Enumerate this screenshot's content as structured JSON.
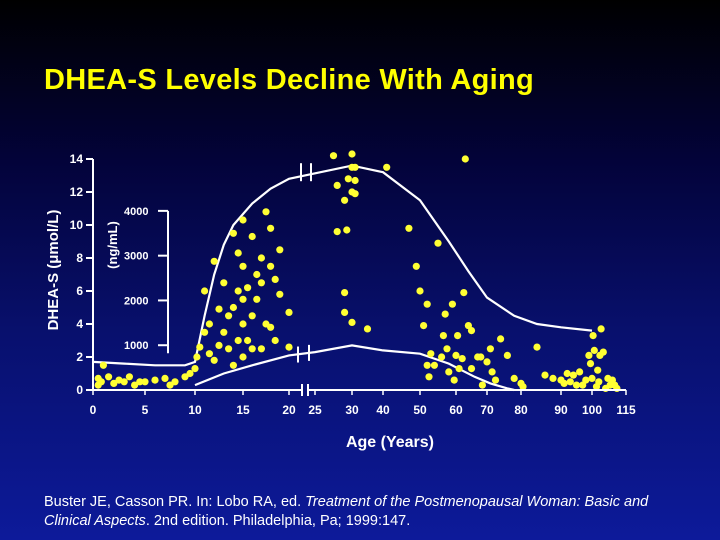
{
  "slide": {
    "title": "DHEA-S Levels Decline With Aging",
    "citation": {
      "prefix": "Buster JE, Casson PR. In: Lobo RA, ed. ",
      "book": "Treatment of the Postmenopausal Woman: Basic and Clinical Aspects",
      "suffix": ". 2nd edition. Philadelphia, Pa; 1999:147."
    }
  },
  "colors": {
    "points": "#ffff33",
    "text": "#ffffff",
    "title": "#ffff00"
  },
  "chart_data": {
    "type": "scatter",
    "xlabel": "Age (Years)",
    "ylabel_left": "DHEA-S (μmol/L)",
    "ylabel_inner": "(ng/mL)",
    "x_ticks": [
      "0",
      "5",
      "10",
      "15",
      "20",
      "25",
      "30",
      "40",
      "50",
      "60",
      "70",
      "80",
      "90",
      "100",
      "115"
    ],
    "x_axis_break_after": "20",
    "y_ticks_left": [
      "0",
      "2",
      "4",
      "6",
      "8",
      "10",
      "12",
      "14"
    ],
    "y_ticks_inner": [
      "1000",
      "2000",
      "3000",
      "4000"
    ],
    "ylim_umol": [
      0,
      14
    ],
    "x_breakpoints": [
      0,
      5,
      10,
      15,
      20,
      25,
      30,
      40,
      50,
      60,
      70,
      80,
      90,
      100,
      115
    ],
    "points": [
      [
        0.5,
        0.3
      ],
      [
        0.5,
        0.7
      ],
      [
        0.8,
        0.5
      ],
      [
        1,
        1.5
      ],
      [
        1.5,
        0.8
      ],
      [
        2,
        0.4
      ],
      [
        2.5,
        0.6
      ],
      [
        3,
        0.5
      ],
      [
        3.5,
        0.8
      ],
      [
        4,
        0.3
      ],
      [
        4.5,
        0.5
      ],
      [
        5,
        0.5
      ],
      [
        6,
        0.6
      ],
      [
        7,
        0.7
      ],
      [
        7.5,
        0.3
      ],
      [
        8,
        0.5
      ],
      [
        9,
        0.8
      ],
      [
        9.5,
        1.0
      ],
      [
        10,
        1.3
      ],
      [
        10.2,
        2.0
      ],
      [
        10.5,
        2.6
      ],
      [
        11,
        3.5
      ],
      [
        11,
        6.0
      ],
      [
        11.5,
        2.2
      ],
      [
        11.5,
        4.0
      ],
      [
        12,
        1.8
      ],
      [
        12,
        7.8
      ],
      [
        12.5,
        2.7
      ],
      [
        12.5,
        4.9
      ],
      [
        13,
        3.5
      ],
      [
        13,
        6.5
      ],
      [
        13.5,
        2.5
      ],
      [
        13.5,
        4.5
      ],
      [
        14,
        1.5
      ],
      [
        14,
        5.0
      ],
      [
        14,
        9.5
      ],
      [
        14.5,
        3.0
      ],
      [
        14.5,
        6.0
      ],
      [
        14.5,
        8.3
      ],
      [
        15,
        2.0
      ],
      [
        15,
        4.0
      ],
      [
        15,
        5.5
      ],
      [
        15,
        7.5
      ],
      [
        15,
        10.3
      ],
      [
        15.5,
        3.0
      ],
      [
        15.5,
        6.2
      ],
      [
        16,
        2.5
      ],
      [
        16,
        4.5
      ],
      [
        16,
        9.3
      ],
      [
        16.5,
        5.5
      ],
      [
        16.5,
        7.0
      ],
      [
        17,
        2.5
      ],
      [
        17,
        6.5
      ],
      [
        17,
        8.0
      ],
      [
        17.5,
        4.0
      ],
      [
        17.5,
        10.8
      ],
      [
        18,
        3.8
      ],
      [
        18,
        7.5
      ],
      [
        18,
        9.8
      ],
      [
        18.5,
        3.0
      ],
      [
        18.5,
        6.7
      ],
      [
        19,
        5.8
      ],
      [
        19,
        8.5
      ],
      [
        20,
        4.7
      ],
      [
        20,
        2.6
      ],
      [
        27.5,
        14.2
      ],
      [
        28,
        12.4
      ],
      [
        28,
        9.6
      ],
      [
        29,
        11.5
      ],
      [
        29,
        5.9
      ],
      [
        29,
        4.7
      ],
      [
        29.3,
        9.7
      ],
      [
        29.5,
        12.8
      ],
      [
        30,
        14.3
      ],
      [
        30,
        13.5
      ],
      [
        30,
        12.0
      ],
      [
        30,
        4.1
      ],
      [
        31,
        13.5
      ],
      [
        31,
        12.7
      ],
      [
        31,
        11.9
      ],
      [
        35,
        3.7
      ],
      [
        41,
        13.5
      ],
      [
        47,
        9.8
      ],
      [
        49,
        7.5
      ],
      [
        50,
        6.0
      ],
      [
        51,
        3.9
      ],
      [
        52,
        5.2
      ],
      [
        52,
        1.5
      ],
      [
        52.5,
        0.8
      ],
      [
        53,
        2.2
      ],
      [
        54,
        1.5
      ],
      [
        55,
        8.9
      ],
      [
        56,
        2.0
      ],
      [
        56.5,
        3.3
      ],
      [
        57,
        4.6
      ],
      [
        57.5,
        2.5
      ],
      [
        58,
        1.1
      ],
      [
        59,
        5.2
      ],
      [
        59.5,
        0.6
      ],
      [
        60,
        2.1
      ],
      [
        60.5,
        3.3
      ],
      [
        61,
        1.3
      ],
      [
        62,
        1.9
      ],
      [
        63,
        14.0
      ],
      [
        62.5,
        5.9
      ],
      [
        64,
        3.9
      ],
      [
        65,
        3.6
      ],
      [
        65,
        1.3
      ],
      [
        67,
        2.0
      ],
      [
        68,
        2.0
      ],
      [
        68.5,
        0.3
      ],
      [
        70,
        1.7
      ],
      [
        71,
        2.5
      ],
      [
        71.5,
        1.1
      ],
      [
        72.5,
        0.6
      ],
      [
        74,
        3.1
      ],
      [
        76,
        2.1
      ],
      [
        78,
        0.7
      ],
      [
        80,
        0.4
      ],
      [
        80.5,
        0.2
      ],
      [
        84,
        2.6
      ],
      [
        86,
        0.9
      ],
      [
        88,
        0.7
      ],
      [
        90,
        0.6
      ],
      [
        91,
        0.4
      ],
      [
        92,
        1.0
      ],
      [
        93,
        0.5
      ],
      [
        94,
        0.9
      ],
      [
        95,
        0.3
      ],
      [
        96,
        1.1
      ],
      [
        97,
        0.3
      ],
      [
        98,
        0.6
      ],
      [
        99,
        2.1
      ],
      [
        99.5,
        1.6
      ],
      [
        100,
        0.7
      ],
      [
        100.5,
        3.3
      ],
      [
        101,
        2.4
      ],
      [
        102,
        0.2
      ],
      [
        102.5,
        1.2
      ],
      [
        103,
        0.5
      ],
      [
        103.5,
        2.1
      ],
      [
        104,
        3.7
      ],
      [
        105,
        2.3
      ],
      [
        106,
        0.1
      ],
      [
        107,
        0.7
      ],
      [
        108,
        0.3
      ],
      [
        109,
        0.6
      ],
      [
        110,
        0.3
      ],
      [
        111,
        0.1
      ]
    ],
    "curve_upper": [
      [
        0,
        1.7
      ],
      [
        3,
        1.6
      ],
      [
        6,
        1.5
      ],
      [
        9,
        1.5
      ],
      [
        10,
        1.7
      ],
      [
        11,
        4.5
      ],
      [
        12,
        7.0
      ],
      [
        13,
        8.8
      ],
      [
        14,
        10.0
      ],
      [
        16,
        11.3
      ],
      [
        18,
        12.2
      ],
      [
        20,
        12.8
      ],
      [
        30,
        13.6
      ],
      [
        40,
        13.2
      ],
      [
        50,
        11.5
      ],
      [
        58,
        9.0
      ],
      [
        64,
        7.2
      ],
      [
        70,
        5.6
      ],
      [
        78,
        4.5
      ],
      [
        84,
        4.0
      ],
      [
        90,
        3.8
      ],
      [
        100,
        3.6
      ]
    ],
    "curve_lower": [
      [
        10,
        0.3
      ],
      [
        13,
        1.0
      ],
      [
        16,
        1.5
      ],
      [
        20,
        2.1
      ],
      [
        25,
        2.3
      ],
      [
        30,
        2.7
      ],
      [
        40,
        2.4
      ],
      [
        50,
        2.2
      ],
      [
        58,
        1.6
      ],
      [
        66,
        0.8
      ],
      [
        71,
        0.4
      ],
      [
        76,
        0.1
      ],
      [
        78,
        0.0
      ]
    ]
  }
}
